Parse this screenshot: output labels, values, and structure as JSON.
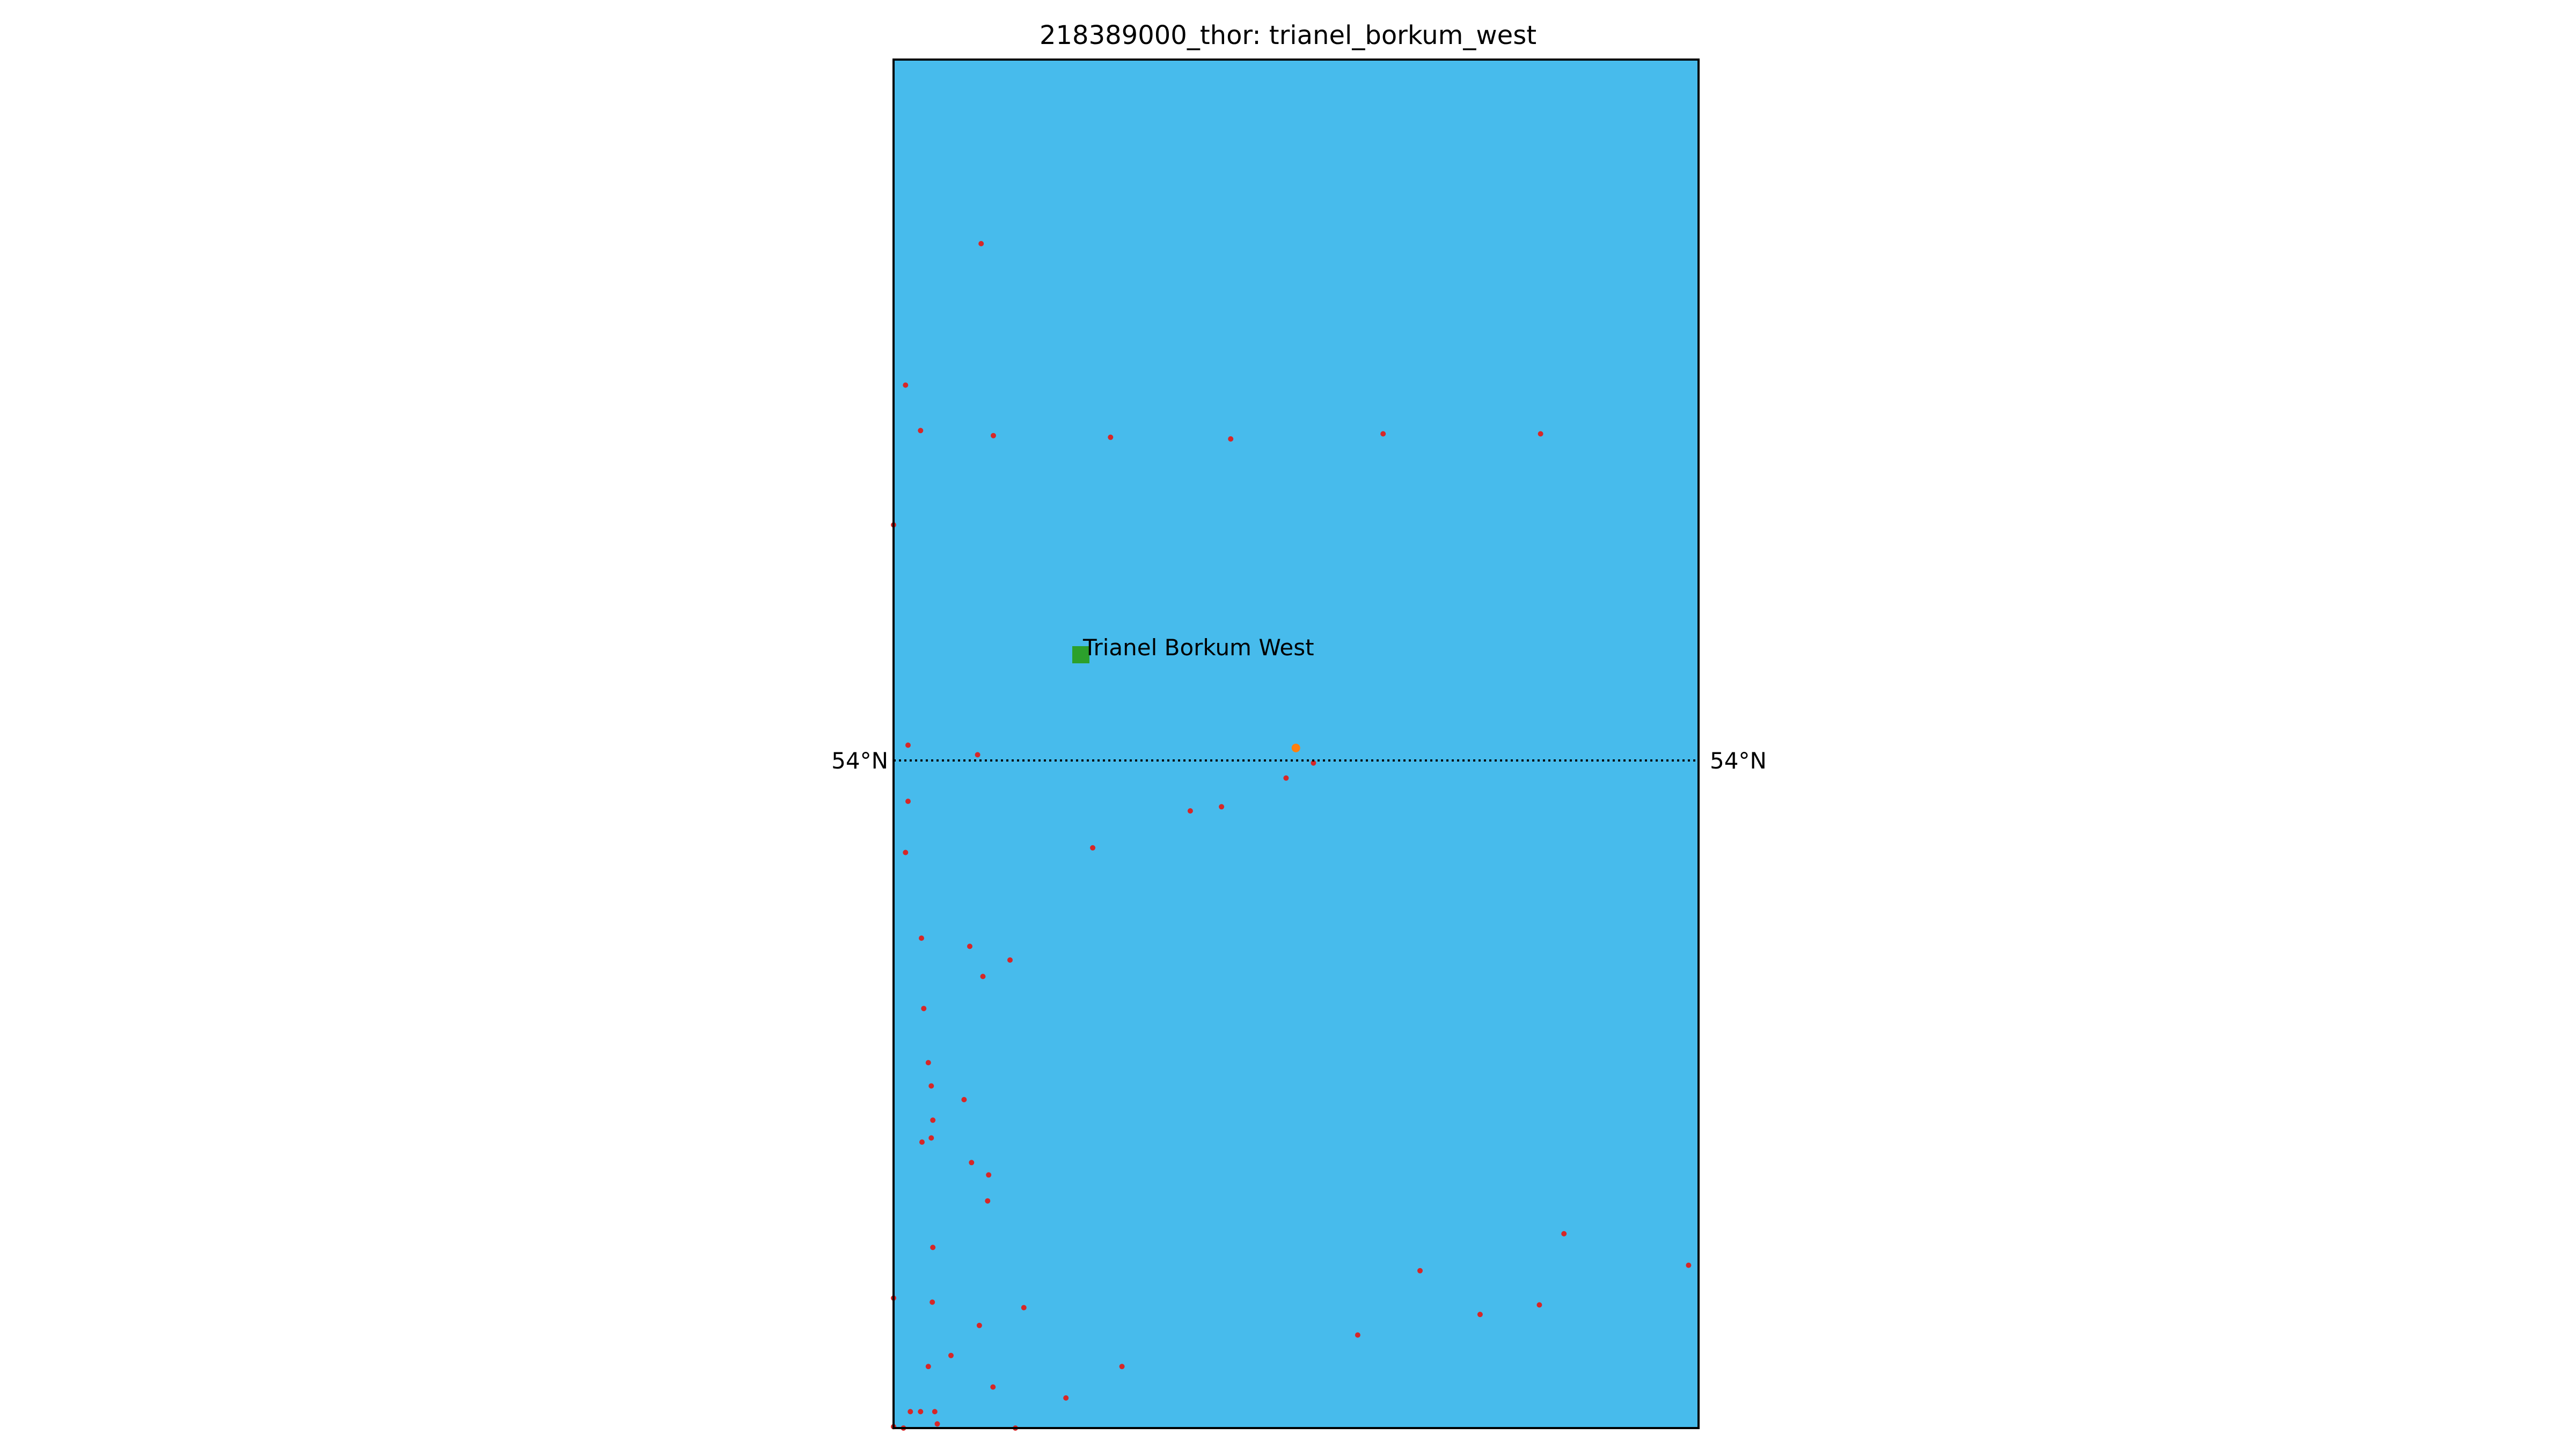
{
  "title": "218389000_thor: trianel_borkum_west",
  "colors": {
    "sea": "#47bbec",
    "frame": "#000000",
    "site_marker": "#2ca02c",
    "ship_point": "#d62728",
    "highlight_point": "#ff7f0e",
    "gridline": "#000000"
  },
  "gridlines": [
    {
      "lat_label": "54°N",
      "side_labels": [
        "left",
        "right"
      ],
      "style": "dotted"
    }
  ],
  "site": {
    "label": "Trianel Borkum West",
    "marker": "square"
  },
  "ship_track": {
    "marker": "dot",
    "points": [
      [
        0.1088,
        0.1345
      ],
      [
        0.0149,
        0.2379
      ],
      [
        0.0335,
        0.2711
      ],
      [
        0.124,
        0.2748
      ],
      [
        0.2695,
        0.276
      ],
      [
        0.4188,
        0.2772
      ],
      [
        0.6081,
        0.2735
      ],
      [
        0.8037,
        0.2735
      ],
      [
        0.0,
        0.34
      ],
      [
        0.018,
        0.501
      ],
      [
        0.1044,
        0.508
      ],
      [
        0.018,
        0.542
      ],
      [
        0.0149,
        0.5794
      ],
      [
        0.5216,
        0.514
      ],
      [
        0.4876,
        0.525
      ],
      [
        0.4074,
        0.546
      ],
      [
        0.3686,
        0.549
      ],
      [
        0.2474,
        0.576
      ],
      [
        0.0347,
        0.642
      ],
      [
        0.0947,
        0.648
      ],
      [
        0.1447,
        0.658
      ],
      [
        0.111,
        0.67
      ],
      [
        0.0375,
        0.6934
      ],
      [
        0.0432,
        0.733
      ],
      [
        0.0469,
        0.75
      ],
      [
        0.0876,
        0.76
      ],
      [
        0.0488,
        0.775
      ],
      [
        0.0469,
        0.788
      ],
      [
        0.0353,
        0.791
      ],
      [
        0.0969,
        0.806
      ],
      [
        0.1181,
        0.815
      ],
      [
        0.1169,
        0.834
      ],
      [
        0.0488,
        0.868
      ],
      [
        0.8328,
        0.858
      ],
      [
        0.654,
        0.885
      ],
      [
        0.9876,
        0.881
      ],
      [
        0.0,
        0.905
      ],
      [
        0.0481,
        0.908
      ],
      [
        0.1619,
        0.912
      ],
      [
        0.1066,
        0.925
      ],
      [
        0.8023,
        0.91
      ],
      [
        0.7286,
        0.917
      ],
      [
        0.5766,
        0.932
      ],
      [
        0.0713,
        0.947
      ],
      [
        0.0432,
        0.955
      ],
      [
        0.2837,
        0.955
      ],
      [
        0.1235,
        0.97
      ],
      [
        0.2141,
        0.978
      ],
      [
        0.0209,
        0.988
      ],
      [
        0.0335,
        0.988
      ],
      [
        0.0512,
        0.988
      ],
      [
        0.0543,
        0.997
      ],
      [
        0.0,
        0.999
      ],
      [
        0.0123,
        1.0
      ],
      [
        0.1513,
        1.0
      ]
    ],
    "highlight_point": [
      0.4998,
      0.503
    ]
  }
}
